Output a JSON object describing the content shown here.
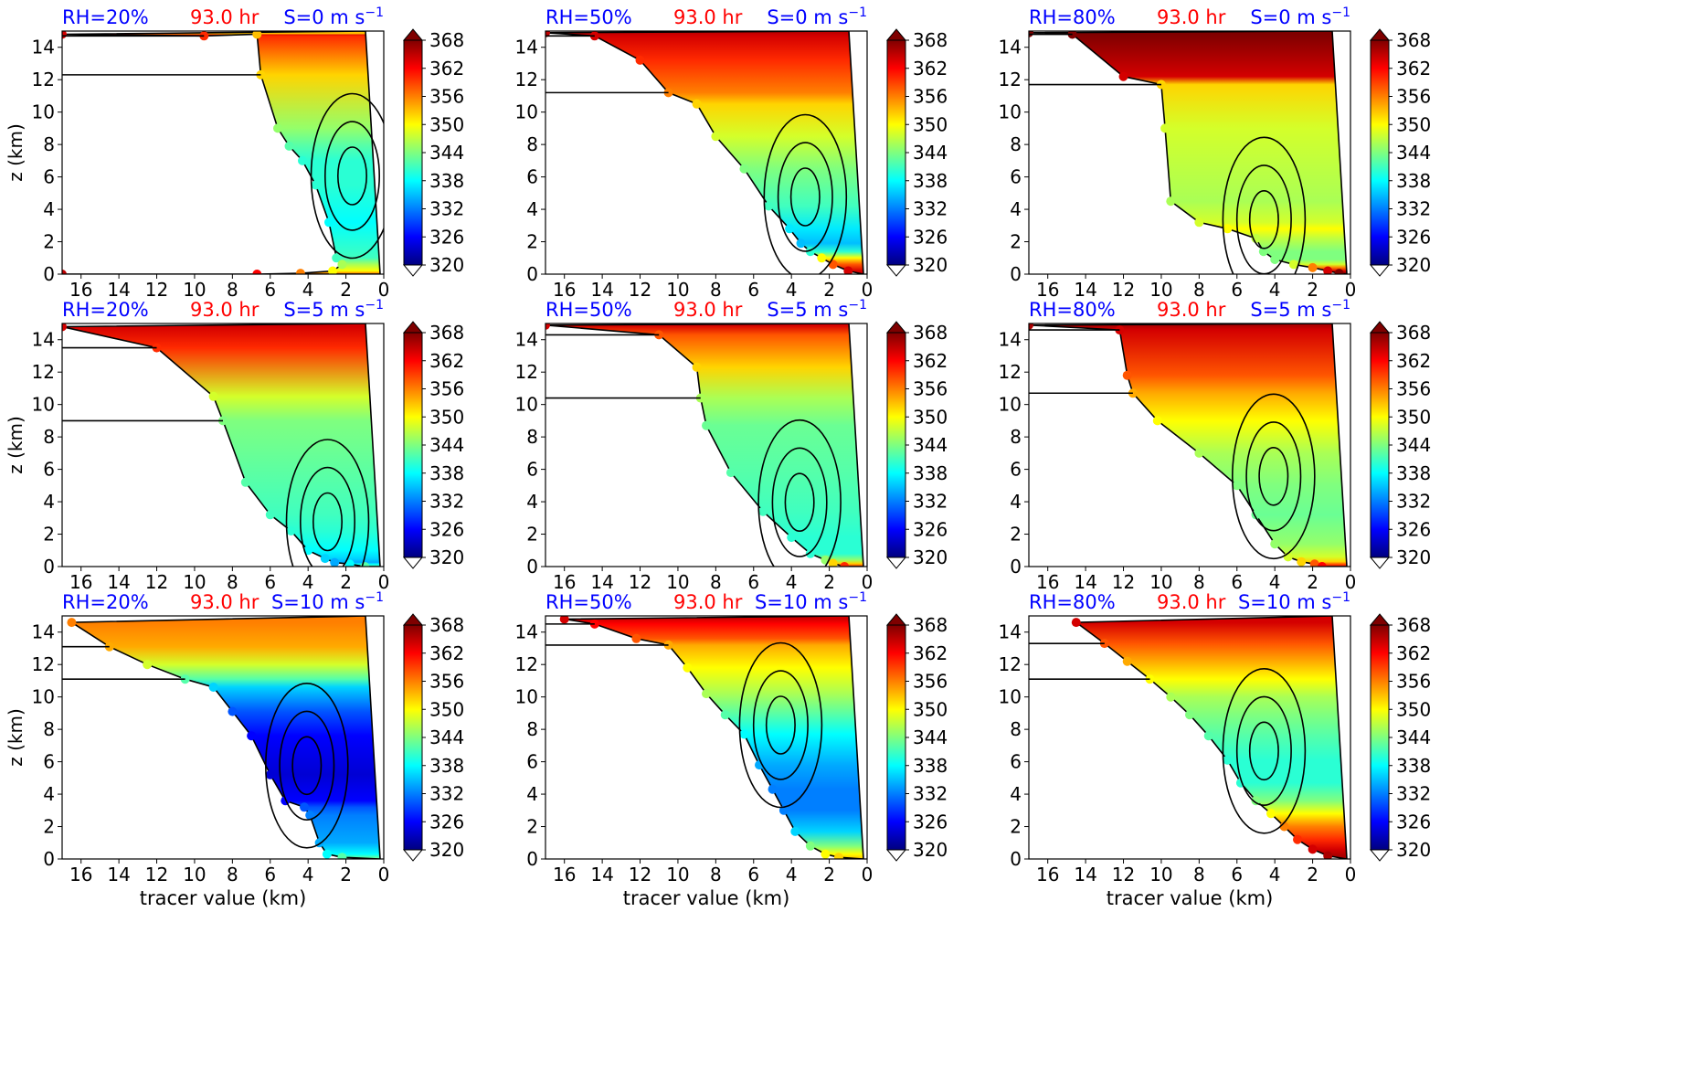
{
  "colors": {
    "rh_label": "#0000ff",
    "time_label": "#ff0000",
    "shear_label": "#0000ff",
    "contour": "#000000",
    "colormap": [
      "#00007f",
      "#0000ff",
      "#007fff",
      "#00ffff",
      "#7fff7f",
      "#ffff00",
      "#ff7f00",
      "#ff0000",
      "#7f0000"
    ]
  },
  "colorbar": {
    "ticks": [
      320,
      326,
      332,
      338,
      344,
      350,
      356,
      362,
      368
    ],
    "range": [
      320,
      368
    ],
    "extend": "both"
  },
  "chart_data": [
    {
      "type": "area",
      "rh_label": "RH=20%",
      "time_label": "93.0 hr",
      "shear_label": "S=0 m s",
      "shear_exp": "−1",
      "xlabel": "",
      "ylabel": "z (km)",
      "xlim": [
        17,
        0
      ],
      "ylim": [
        0,
        15
      ],
      "xticks": [
        16,
        14,
        12,
        10,
        8,
        6,
        4,
        2,
        0
      ],
      "yticks": [
        0,
        2,
        4,
        6,
        8,
        10,
        12,
        14
      ],
      "x": [
        17,
        9.5,
        6.7,
        6.5,
        5.6,
        5.0,
        4.3,
        3.6,
        2.9,
        2.5,
        2.2,
        2.7,
        4.4,
        6.7,
        17
      ],
      "theta": [
        364,
        360,
        353,
        352,
        345,
        342,
        340,
        340,
        338,
        341,
        346,
        350,
        356,
        362,
        365
      ],
      "y": [
        14.8,
        14.7,
        14.8,
        12.3,
        9.0,
        7.9,
        7.0,
        5.5,
        3.2,
        1.0,
        0.6,
        0.2,
        0.05,
        0.0,
        0.0
      ]
    },
    {
      "type": "area",
      "rh_label": "RH=50%",
      "time_label": "93.0 hr",
      "shear_label": "S=0 m s",
      "shear_exp": "−1",
      "xlabel": "",
      "ylabel": "",
      "xlim": [
        17,
        0
      ],
      "ylim": [
        0,
        15
      ],
      "xticks": [
        16,
        14,
        12,
        10,
        8,
        6,
        4,
        2,
        0
      ],
      "yticks": [
        0,
        2,
        4,
        6,
        8,
        10,
        12,
        14
      ],
      "x": [
        17,
        14.4,
        12.0,
        10.5,
        9.0,
        8.0,
        6.5,
        5.2,
        4.1,
        3.5,
        3.0,
        2.4,
        1.8,
        1.0
      ],
      "theta": [
        365,
        364,
        360,
        356,
        352,
        348,
        344,
        341,
        337,
        335,
        340,
        350,
        358,
        364
      ],
      "y": [
        14.9,
        14.7,
        13.2,
        11.2,
        10.5,
        8.5,
        6.5,
        4.2,
        2.8,
        1.9,
        1.4,
        1.0,
        0.6,
        0.2
      ]
    },
    {
      "type": "area",
      "rh_label": "RH=80%",
      "time_label": "93.0 hr",
      "shear_label": "S=0 m s",
      "shear_exp": "−1",
      "xlabel": "",
      "ylabel": "",
      "xlim": [
        17,
        0
      ],
      "ylim": [
        0,
        15
      ],
      "xticks": [
        16,
        14,
        12,
        10,
        8,
        6,
        4,
        2,
        0
      ],
      "yticks": [
        0,
        2,
        4,
        6,
        8,
        10,
        12,
        14
      ],
      "x": [
        17,
        14.7,
        12.0,
        10.0,
        9.8,
        9.5,
        8.0,
        6.5,
        5.0,
        4.6,
        4.0,
        3.0,
        2.0,
        1.2,
        0.6
      ],
      "theta": [
        369,
        368,
        364,
        352,
        348,
        346,
        348,
        350,
        347,
        344,
        344,
        348,
        356,
        364,
        368
      ],
      "y": [
        14.9,
        14.8,
        12.2,
        11.7,
        9.0,
        4.5,
        3.2,
        2.8,
        2.2,
        1.4,
        0.9,
        0.6,
        0.4,
        0.2,
        0.05
      ]
    },
    {
      "type": "area",
      "rh_label": "RH=20%",
      "time_label": "93.0 hr",
      "shear_label": "S=5 m s",
      "shear_exp": "−1",
      "xlabel": "",
      "ylabel": "z (km)",
      "xlim": [
        17,
        0
      ],
      "ylim": [
        0,
        15
      ],
      "xticks": [
        16,
        14,
        12,
        10,
        8,
        6,
        4,
        2,
        0
      ],
      "yticks": [
        0,
        2,
        4,
        6,
        8,
        10,
        12,
        14
      ],
      "x": [
        17,
        12.0,
        9.0,
        8.5,
        7.3,
        6.0,
        4.9,
        4.0,
        3.1,
        2.6,
        1.8,
        1.0
      ],
      "theta": [
        364,
        360,
        348,
        344,
        342,
        341,
        340,
        338,
        336,
        334,
        338,
        342
      ],
      "y": [
        14.8,
        13.5,
        10.5,
        9.0,
        5.2,
        3.2,
        2.2,
        1.0,
        0.5,
        0.25,
        0.15,
        0.0
      ]
    },
    {
      "type": "area",
      "rh_label": "RH=50%",
      "time_label": "93.0 hr",
      "shear_label": "S=5 m s",
      "shear_exp": "−1",
      "xlabel": "",
      "ylabel": "",
      "xlim": [
        17,
        0
      ],
      "ylim": [
        0,
        15
      ],
      "xticks": [
        16,
        14,
        12,
        10,
        8,
        6,
        4,
        2,
        0
      ],
      "yticks": [
        0,
        2,
        4,
        6,
        8,
        10,
        12,
        14
      ],
      "x": [
        17,
        11.0,
        9.0,
        8.8,
        8.5,
        7.2,
        5.5,
        4.0,
        3.0,
        2.2,
        1.8,
        1.2
      ],
      "theta": [
        364,
        358,
        352,
        346,
        343,
        342,
        341,
        340,
        340,
        345,
        352,
        360
      ],
      "y": [
        14.9,
        14.3,
        12.3,
        10.4,
        8.7,
        5.8,
        3.4,
        1.8,
        0.8,
        0.4,
        0.2,
        0.0
      ]
    },
    {
      "type": "area",
      "rh_label": "RH=80%",
      "time_label": "93.0 hr",
      "shear_label": "S=5 m s",
      "shear_exp": "−1",
      "xlabel": "",
      "ylabel": "",
      "xlim": [
        17,
        0
      ],
      "ylim": [
        0,
        15
      ],
      "xticks": [
        16,
        14,
        12,
        10,
        8,
        6,
        4,
        2,
        0
      ],
      "yticks": [
        0,
        2,
        4,
        6,
        8,
        10,
        12,
        14
      ],
      "x": [
        17,
        12.2,
        11.8,
        11.5,
        10.2,
        8.0,
        6.0,
        5.0,
        4.0,
        3.3,
        2.6,
        1.9,
        1.5
      ],
      "theta": [
        366,
        364,
        358,
        354,
        350,
        346,
        344,
        343,
        345,
        348,
        352,
        358,
        362
      ],
      "y": [
        14.9,
        14.6,
        11.8,
        10.7,
        9.0,
        7.0,
        5.0,
        3.2,
        1.4,
        0.6,
        0.3,
        0.15,
        0.0
      ]
    },
    {
      "type": "area",
      "rh_label": "RH=20%",
      "time_label": "93.0 hr",
      "shear_label": "S=10 m s",
      "shear_exp": "−1",
      "xlabel": "tracer value (km)",
      "ylabel": "z (km)",
      "xlim": [
        17,
        0
      ],
      "ylim": [
        0,
        15
      ],
      "xticks": [
        16,
        14,
        12,
        10,
        8,
        6,
        4,
        2,
        0
      ],
      "yticks": [
        0,
        2,
        4,
        6,
        8,
        10,
        12,
        14
      ],
      "x": [
        16.5,
        14.5,
        12.5,
        10.5,
        9.0,
        8.0,
        7.0,
        6.0,
        5.2,
        4.2,
        3.9,
        3.4,
        3.0,
        2.2
      ],
      "theta": [
        356,
        354,
        348,
        342,
        336,
        330,
        326,
        324,
        326,
        330,
        332,
        334,
        338,
        342
      ],
      "y": [
        14.6,
        13.1,
        12.0,
        11.1,
        10.6,
        9.1,
        7.6,
        5.2,
        3.6,
        3.2,
        2.7,
        1.0,
        0.3,
        0.1
      ]
    },
    {
      "type": "area",
      "rh_label": "RH=50%",
      "time_label": "93.0 hr",
      "shear_label": "S=10 m s",
      "shear_exp": "−1",
      "xlabel": "tracer value (km)",
      "ylabel": "",
      "xlim": [
        17,
        0
      ],
      "ylim": [
        0,
        15
      ],
      "xticks": [
        16,
        14,
        12,
        10,
        8,
        6,
        4,
        2,
        0
      ],
      "yticks": [
        0,
        2,
        4,
        6,
        8,
        10,
        12,
        14
      ],
      "x": [
        16.0,
        14.4,
        12.2,
        10.5,
        9.5,
        8.5,
        7.5,
        6.5,
        5.7,
        5.0,
        4.4,
        3.8,
        3.0,
        2.2,
        1.5
      ],
      "theta": [
        364,
        362,
        358,
        354,
        350,
        346,
        342,
        338,
        334,
        332,
        332,
        336,
        344,
        350,
        352
      ],
      "y": [
        14.8,
        14.5,
        13.6,
        13.2,
        11.8,
        10.2,
        8.9,
        7.7,
        5.8,
        4.3,
        3.0,
        1.7,
        0.8,
        0.3,
        0.1
      ]
    },
    {
      "type": "area",
      "rh_label": "RH=80%",
      "time_label": "93.0 hr",
      "shear_label": "S=10 m s",
      "shear_exp": "−1",
      "xlabel": "tracer value (km)",
      "ylabel": "",
      "xlim": [
        17,
        0
      ],
      "ylim": [
        0,
        15
      ],
      "xticks": [
        16,
        14,
        12,
        10,
        8,
        6,
        4,
        2,
        0
      ],
      "yticks": [
        0,
        2,
        4,
        6,
        8,
        10,
        12,
        14
      ],
      "x": [
        14.5,
        13.0,
        11.8,
        10.6,
        9.5,
        8.5,
        7.5,
        6.5,
        5.8,
        5.0,
        4.2,
        3.5,
        2.8,
        2.0,
        1.2
      ],
      "theta": [
        364,
        358,
        354,
        350,
        346,
        344,
        342,
        340,
        340,
        344,
        350,
        356,
        360,
        364,
        366
      ],
      "y": [
        14.6,
        13.3,
        12.2,
        11.1,
        10.0,
        8.9,
        7.6,
        6.1,
        4.7,
        3.6,
        2.8,
        2.0,
        1.2,
        0.6,
        0.2
      ]
    }
  ]
}
